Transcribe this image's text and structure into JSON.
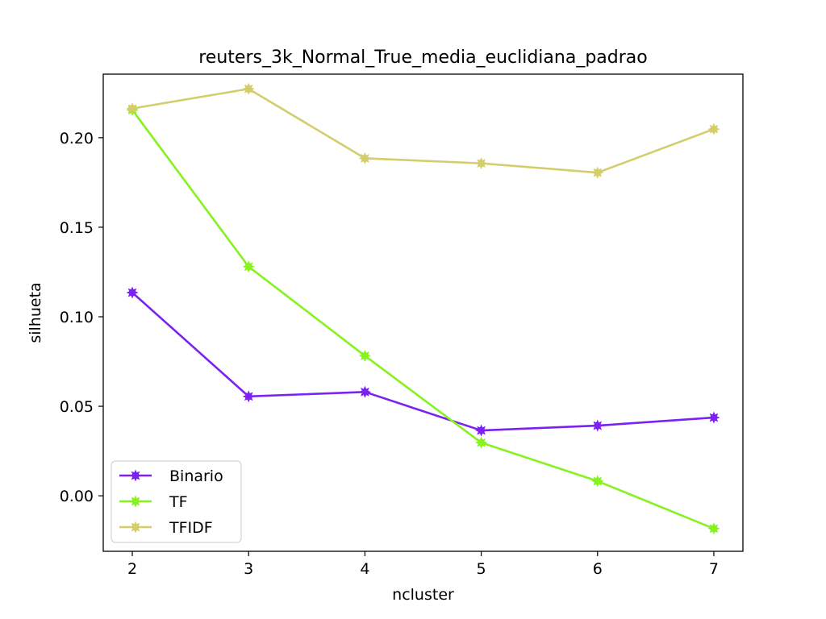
{
  "chart_data": {
    "type": "line",
    "title": "reuters_3k_Normal_True_media_euclidiana_padrao",
    "xlabel": "ncluster",
    "ylabel": "silhueta",
    "x": [
      2,
      3,
      4,
      5,
      6,
      7
    ],
    "xticks": [
      "2",
      "3",
      "4",
      "5",
      "6",
      "7"
    ],
    "yticks": [
      "0.00",
      "0.05",
      "0.10",
      "0.15",
      "0.20"
    ],
    "xlim": [
      1.75,
      7.25
    ],
    "ylim": [
      -0.031,
      0.2355
    ],
    "grid": false,
    "legend_position": "lower-left",
    "series": [
      {
        "name": "Binario",
        "color": "#7b22f2",
        "values": [
          0.1135,
          0.0555,
          0.058,
          0.0365,
          0.0392,
          0.0437
        ]
      },
      {
        "name": "TF",
        "color": "#86f21f",
        "values": [
          0.2155,
          0.128,
          0.0782,
          0.0297,
          0.0082,
          -0.0183
        ]
      },
      {
        "name": "TFIDF",
        "color": "#d3cd6c",
        "values": [
          0.2163,
          0.2273,
          0.1885,
          0.1857,
          0.1805,
          0.2048
        ]
      }
    ]
  }
}
